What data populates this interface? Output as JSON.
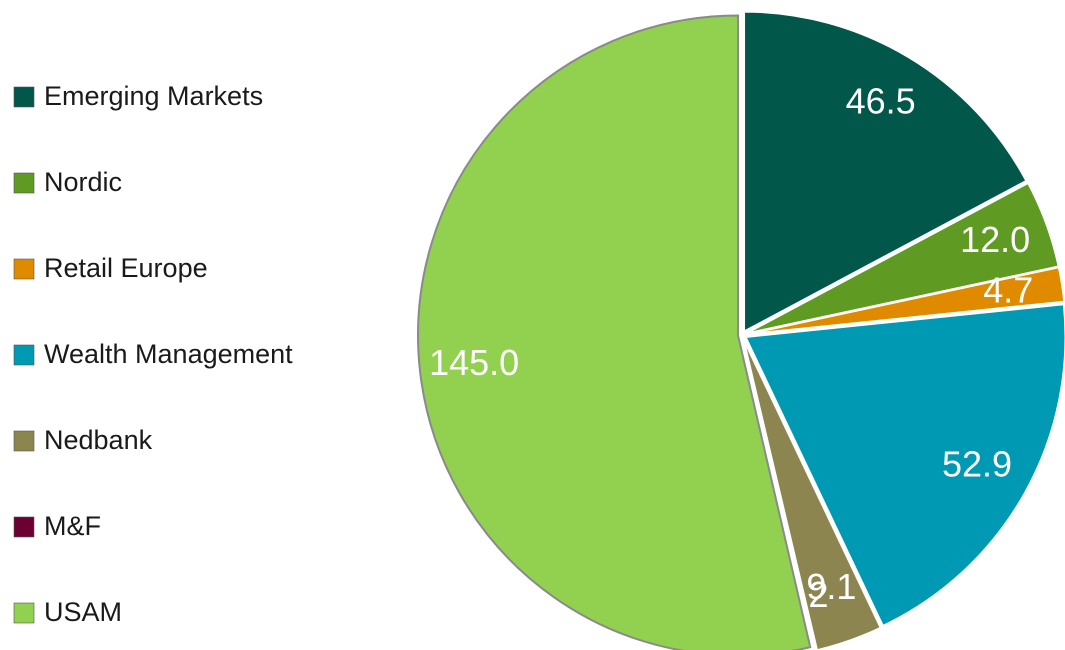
{
  "chart_data": {
    "type": "pie",
    "categories": [
      "Emerging Markets",
      "Nordic",
      "Retail Europe",
      "Wealth Management",
      "Nedbank",
      "M&F",
      "USAM"
    ],
    "values": [
      46.5,
      12.0,
      4.7,
      52.9,
      9.1,
      0.2,
      145.0
    ],
    "value_labels": [
      "46.5",
      "12.0",
      "4.7",
      "52.9",
      "9.1",
      "0.2",
      "145.0"
    ],
    "colors": [
      "#00574a",
      "#5f9a22",
      "#e08a00",
      "#0099b3",
      "#8c8550",
      "#6b0033",
      "#92d050"
    ],
    "legend": "left"
  }
}
